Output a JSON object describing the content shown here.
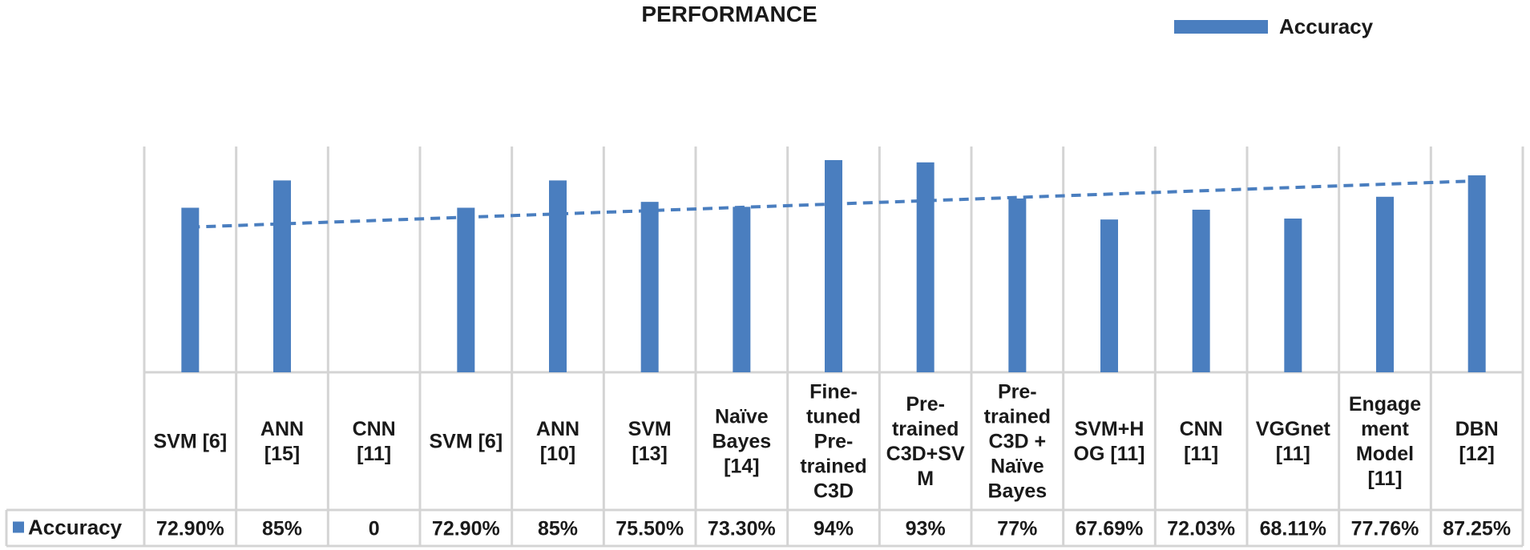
{
  "chart_data": {
    "type": "bar",
    "title": "PERFORMANCE",
    "categories": [
      "SVM [6]",
      "ANN [15]",
      "CNN [11]",
      "SVM [6]",
      "ANN [10]",
      "SVM [13]",
      "Naïve Bayes [14]",
      "Fine-tuned Pre-trained C3D",
      "Pre-trained C3D+SVM",
      "Pre-trained C3D + Naïve Bayes",
      "SVM+HOG [11]",
      "CNN [11]",
      "VGGnet [11]",
      "Engagement Model [11]",
      "DBN [12]"
    ],
    "category_lines": [
      [
        "SVM [6]"
      ],
      [
        "ANN",
        "[15]"
      ],
      [
        "CNN",
        "[11]"
      ],
      [
        "SVM [6]"
      ],
      [
        "ANN",
        "[10]"
      ],
      [
        "SVM",
        "[13]"
      ],
      [
        "Naïve",
        "Bayes",
        "[14]"
      ],
      [
        "Fine-",
        "tuned",
        "Pre-",
        "trained",
        "C3D"
      ],
      [
        "Pre-",
        "trained",
        "C3D+SV",
        "M"
      ],
      [
        "Pre-",
        "trained",
        "C3D +",
        "Naïve",
        "Bayes"
      ],
      [
        "SVM+H",
        "OG [11]"
      ],
      [
        "CNN",
        "[11]"
      ],
      [
        "VGGnet",
        "[11]"
      ],
      [
        "Engage",
        "ment",
        "Model",
        "[11]"
      ],
      [
        "DBN",
        "[12]"
      ]
    ],
    "series": [
      {
        "name": "Accuracy",
        "values": [
          72.9,
          85,
          0,
          72.9,
          85,
          75.5,
          73.3,
          94,
          93,
          77,
          67.69,
          72.03,
          68.11,
          77.76,
          87.25
        ],
        "labels": [
          "72.90%",
          "85%",
          "0",
          "72.90%",
          "85%",
          "75.50%",
          "73.30%",
          "94%",
          "93%",
          "77%",
          "67.69%",
          "72.03%",
          "68.11%",
          "77.76%",
          "87.25%"
        ],
        "color": "#4a7ebf"
      }
    ],
    "trendline": {
      "type": "linear",
      "style": "dashed",
      "color": "#4a7ebf",
      "start": 64.3,
      "end": 84.8
    },
    "ylim": [
      0,
      100
    ],
    "legend": "top-right",
    "data_table": true,
    "grid": false
  },
  "legend": {
    "label": "Accuracy"
  },
  "table": {
    "row_header": "Accuracy"
  }
}
